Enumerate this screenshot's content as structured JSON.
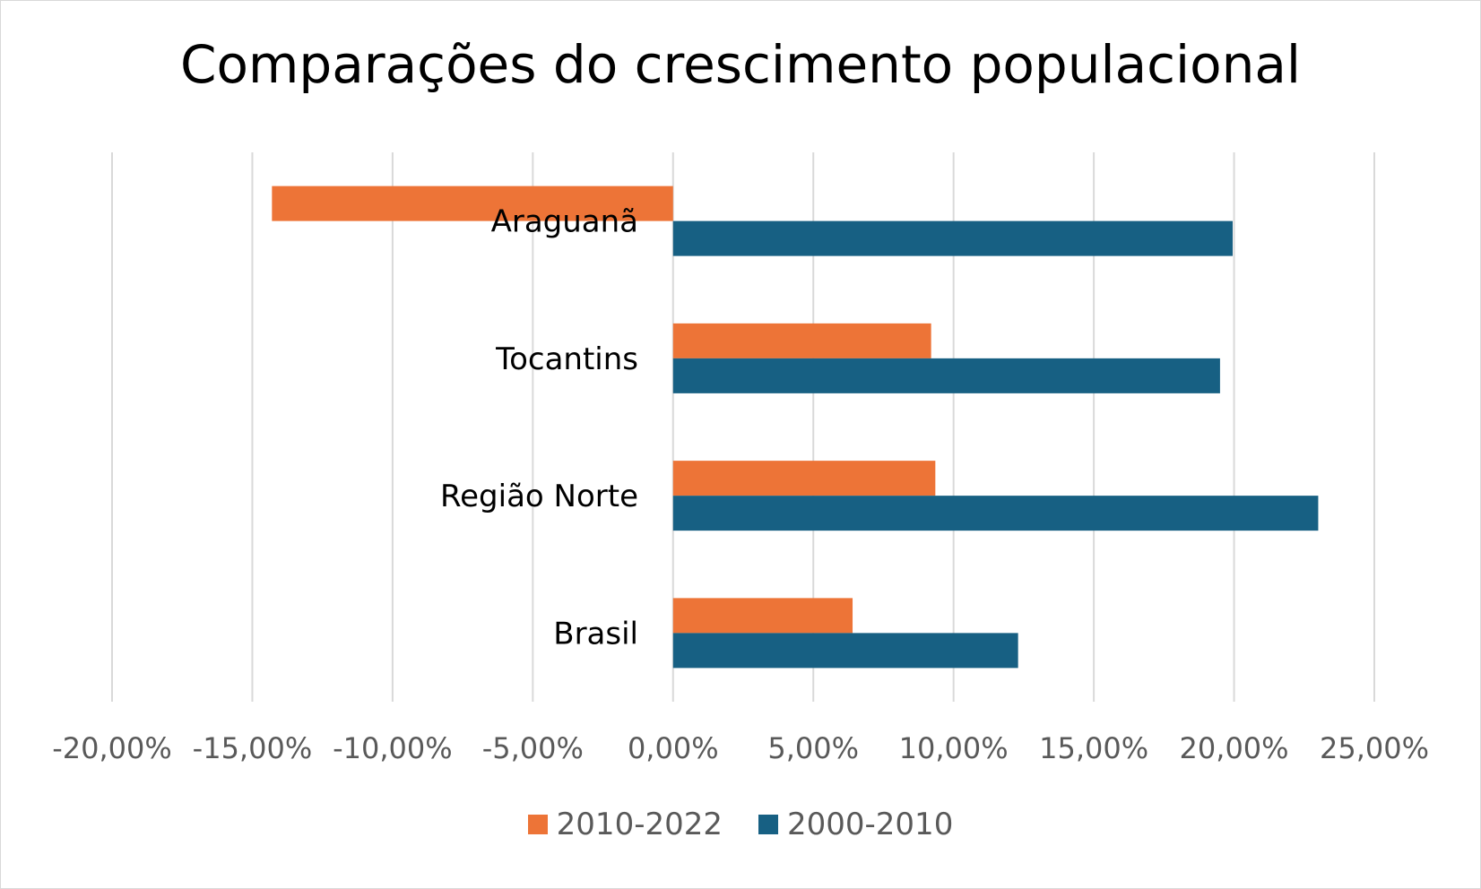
{
  "chart_data": {
    "type": "bar",
    "orientation": "horizontal",
    "title": "Comparações do crescimento populacional",
    "xlabel": "",
    "ylabel": "",
    "categories": [
      "Araguanã",
      "Tocantins",
      "Região Norte",
      "Brasil"
    ],
    "series": [
      {
        "name": "2010-2022",
        "color": "#ED7437",
        "values": [
          -14.3,
          9.2,
          9.35,
          6.4
        ]
      },
      {
        "name": "2000-2010",
        "color": "#176083",
        "values": [
          19.95,
          19.5,
          23.0,
          12.3
        ]
      }
    ],
    "xlim": [
      -20,
      25
    ],
    "x_ticks": [
      "-20,00%",
      "-15,00%",
      "-10,00%",
      "-5,00%",
      "0,00%",
      "5,00%",
      "10,00%",
      "15,00%",
      "20,00%",
      "25,00%"
    ],
    "x_tick_values": [
      -20,
      -15,
      -10,
      -5,
      0,
      5,
      10,
      15,
      20,
      25
    ],
    "grid": true,
    "legend_position": "bottom",
    "colors": {
      "gridline": "#d9d9d9",
      "axis_text": "#595959"
    }
  }
}
